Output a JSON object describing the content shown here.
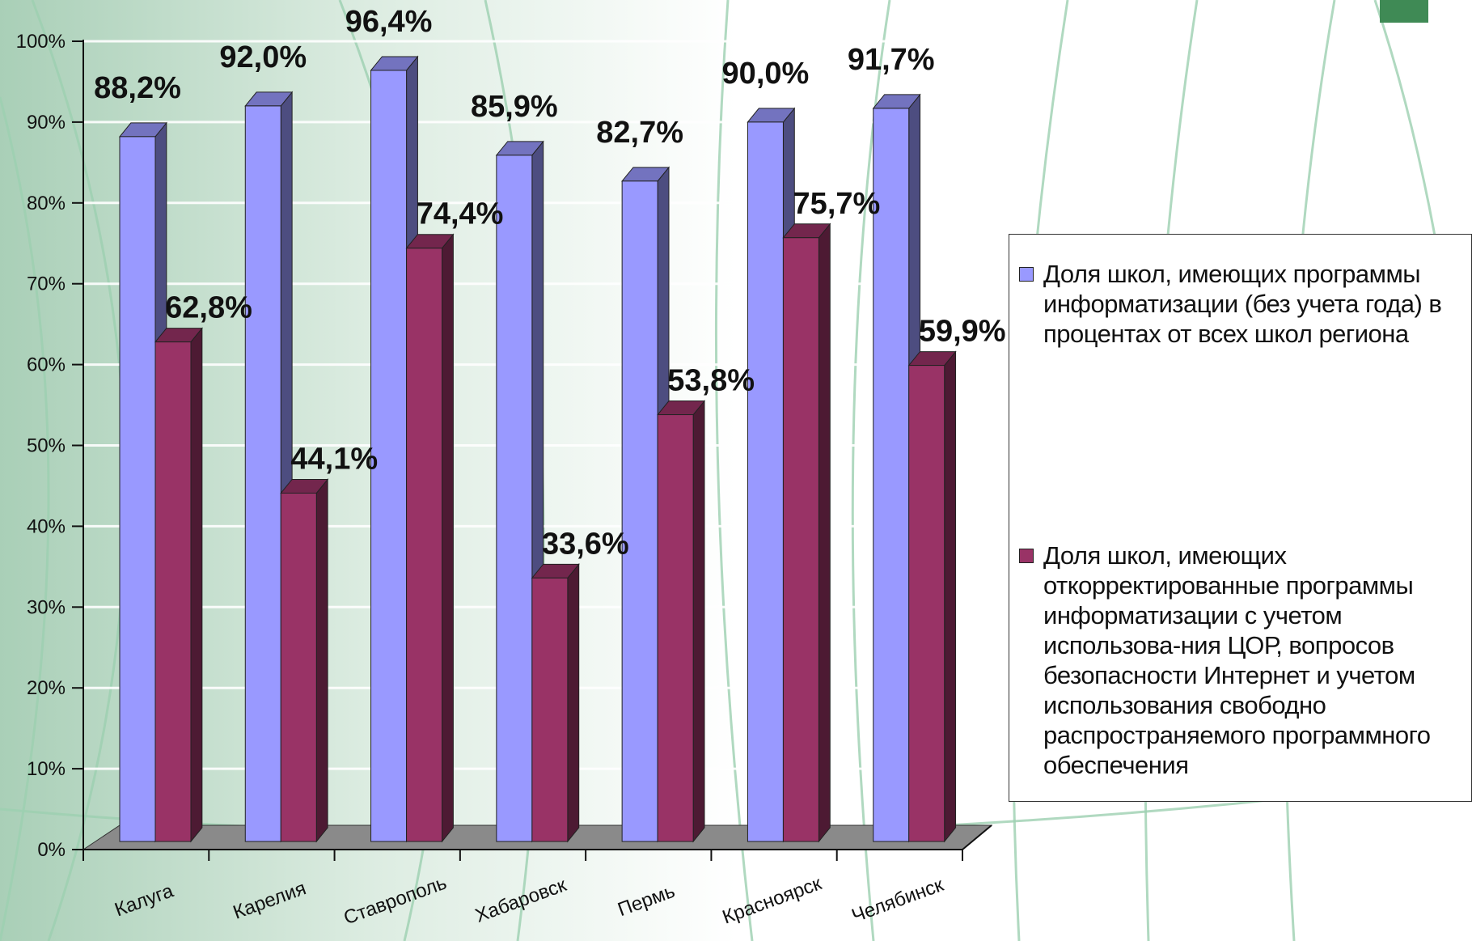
{
  "chart_data": {
    "type": "bar",
    "categories": [
      "Калуга",
      "Карелия",
      "Ставрополь",
      "Хабаровск",
      "Пермь",
      "Красноярск",
      "Челябинск"
    ],
    "series": [
      {
        "name": "Доля школ, имеющих программы информатизации (без учета года) в процентах от всех школ региона",
        "values": [
          88.2,
          92.0,
          96.4,
          85.9,
          82.7,
          90.0,
          91.7
        ],
        "labels": [
          "88,2%",
          "92,0%",
          "96,4%",
          "85,9%",
          "82,7%",
          "90,0%",
          "91,7%"
        ],
        "color": "#9999ff"
      },
      {
        "name": "Доля школ, имеющих откорректированные программы информатизации с учетом использова-ния ЦОР, вопросов безопасности Интернет и учетом использования свободно распространяемого программного обеспечения",
        "values": [
          62.8,
          44.1,
          74.4,
          33.6,
          53.8,
          75.7,
          59.9
        ],
        "labels": [
          "62,8%",
          "44,1%",
          "74,4%",
          "33,6%",
          "53,8%",
          "75,7%",
          "59,9%"
        ],
        "color": "#993366"
      }
    ],
    "y_ticks": [
      "0%",
      "10%",
      "20%",
      "30%",
      "40%",
      "50%",
      "60%",
      "70%",
      "80%",
      "90%",
      "100%"
    ],
    "ylim": [
      0,
      100
    ],
    "legend_position": "right",
    "three_d": true
  },
  "legend": {
    "item1": "Доля школ, имеющих программы информатизации (без учета года) в процентах от всех школ региона",
    "item2": "Доля школ, имеющих откорректированные программы информатизации с учетом использова-ния ЦОР, вопросов безопасности Интернет и учетом использования свободно распространяемого программного обеспечения"
  }
}
